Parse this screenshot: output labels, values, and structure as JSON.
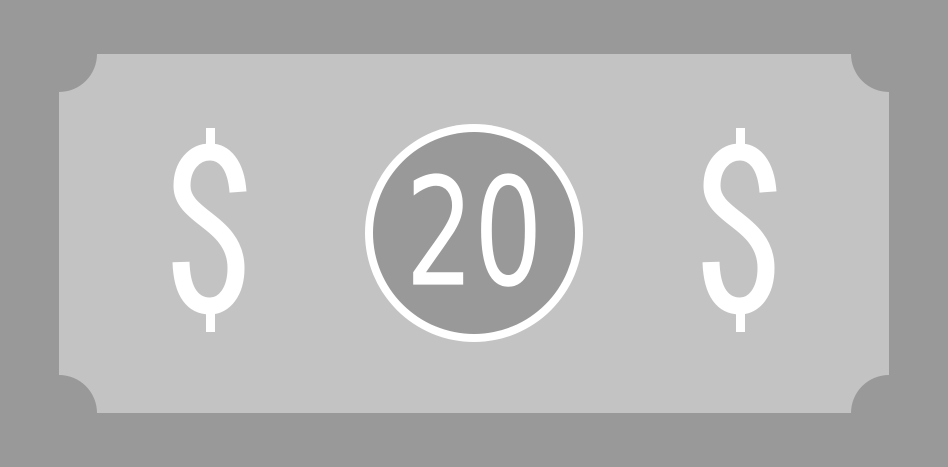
{
  "banknote": {
    "denomination": "20",
    "left_symbol": "$",
    "right_symbol": "$"
  },
  "colors": {
    "outer_border": "#999999",
    "inner_panel": "#c3c3c3",
    "medallion_fill": "#999999",
    "foreground": "#ffffff"
  }
}
